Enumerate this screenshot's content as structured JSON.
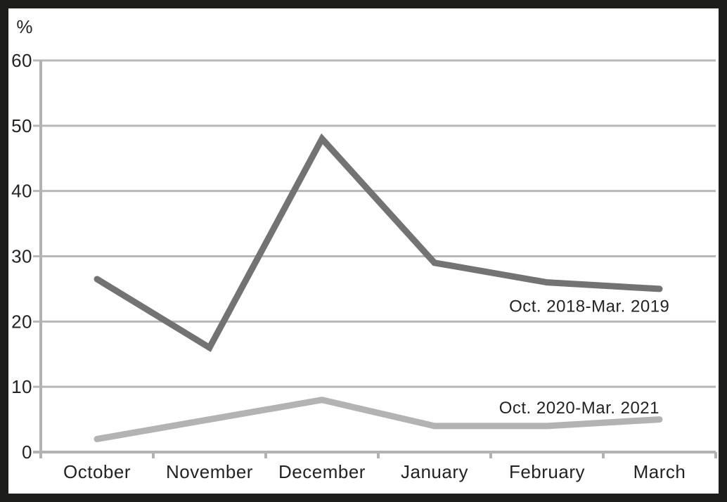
{
  "chart_data": {
    "type": "line",
    "title": "",
    "unit_label": "%",
    "xlabel": "",
    "ylabel": "%",
    "categories": [
      "October",
      "November",
      "December",
      "January",
      "February",
      "March"
    ],
    "series": [
      {
        "name": "Oct. 2018-Mar. 2019",
        "values": [
          26.5,
          16,
          48,
          29,
          26,
          25
        ],
        "color": "#737373",
        "label_u": 5.59,
        "label_v": 21.5
      },
      {
        "name": "Oct. 2020-Mar. 2021",
        "values": [
          2,
          5,
          8,
          4,
          4,
          5
        ],
        "color": "#b3b3b3",
        "label_u": 5.5,
        "label_v": 5.9
      }
    ],
    "y_ticks": [
      60,
      50,
      40,
      30,
      20,
      10,
      0
    ],
    "ylim": [
      0,
      60
    ],
    "grid": true,
    "legend_position": "inline-labels-right",
    "colors": {
      "gridline": "#b8b8b8",
      "axis": "#b2b2b2",
      "text": "#232323",
      "frame": "#1d1d1b",
      "background": "#ffffff"
    }
  }
}
